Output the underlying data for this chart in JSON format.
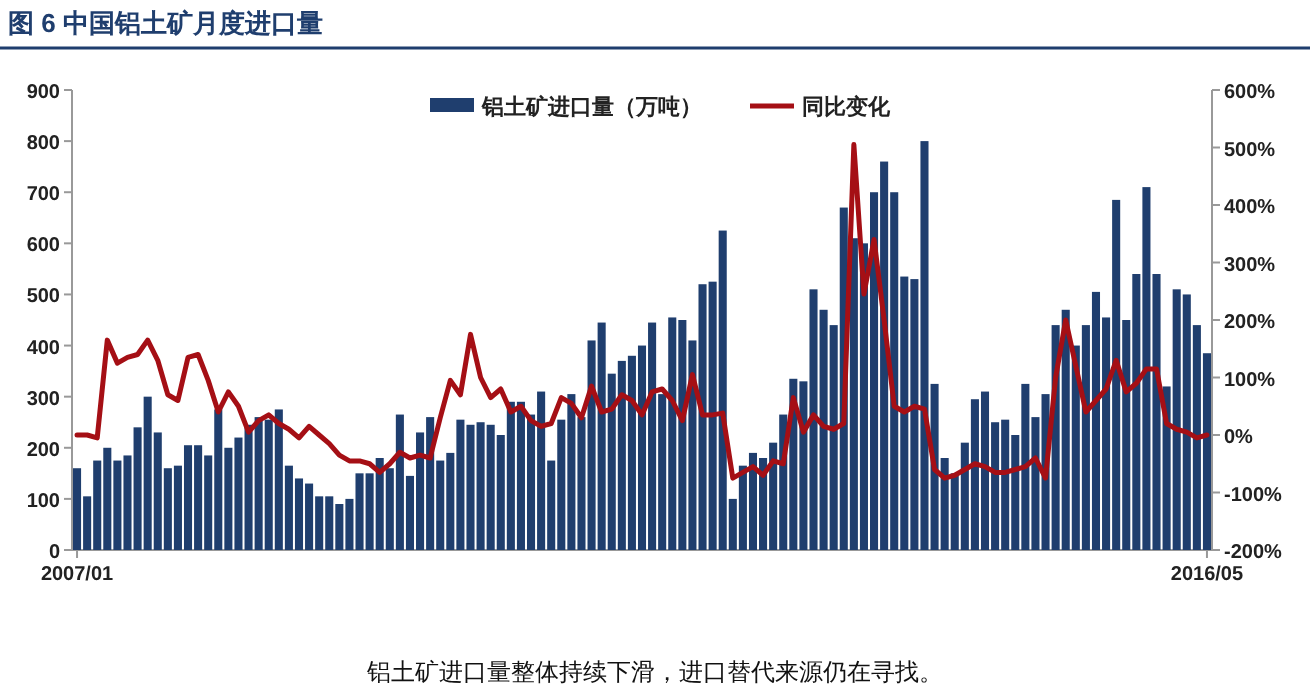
{
  "chart_data": {
    "type": "bar",
    "title": "图 6    中国铝土矿月度进口量",
    "categories": [
      "2007/01",
      null,
      null,
      null,
      null,
      null,
      null,
      null,
      null,
      null,
      null,
      null,
      null,
      null,
      null,
      null,
      null,
      null,
      null,
      null,
      null,
      null,
      null,
      null,
      null,
      null,
      null,
      null,
      null,
      null,
      null,
      null,
      null,
      null,
      null,
      null,
      null,
      null,
      null,
      null,
      null,
      null,
      null,
      null,
      null,
      null,
      null,
      null,
      null,
      null,
      null,
      null,
      null,
      null,
      null,
      null,
      null,
      null,
      null,
      null,
      null,
      null,
      null,
      null,
      null,
      null,
      null,
      null,
      null,
      null,
      null,
      null,
      null,
      null,
      null,
      null,
      null,
      null,
      null,
      null,
      null,
      null,
      null,
      null,
      null,
      null,
      null,
      null,
      null,
      null,
      null,
      null,
      null,
      null,
      null,
      null,
      null,
      null,
      null,
      null,
      null,
      null,
      null,
      null,
      null,
      null,
      null,
      null,
      null,
      null,
      null,
      null,
      "2016/05"
    ],
    "series": [
      {
        "name": "铝土矿进口量（万吨）",
        "color": "#1f3e6e",
        "values": [
          160,
          105,
          175,
          200,
          175,
          185,
          240,
          300,
          230,
          160,
          165,
          205,
          205,
          185,
          275,
          200,
          220,
          245,
          260,
          255,
          275,
          165,
          140,
          130,
          105,
          105,
          90,
          100,
          150,
          150,
          180,
          160,
          265,
          145,
          230,
          260,
          175,
          190,
          255,
          245,
          250,
          245,
          225,
          290,
          290,
          265,
          310,
          175,
          255,
          305,
          260,
          410,
          445,
          345,
          370,
          380,
          400,
          445,
          305,
          455,
          450,
          410,
          520,
          525,
          625,
          100,
          165,
          190,
          180,
          210,
          265,
          335,
          330,
          510,
          470,
          440,
          670,
          610,
          600,
          700,
          760,
          700,
          535,
          530,
          800,
          325,
          180,
          150,
          210,
          295,
          310,
          250,
          255,
          225,
          325,
          260,
          305,
          440,
          470,
          400,
          440,
          505,
          455,
          685,
          450,
          540,
          710,
          540,
          320,
          510,
          500,
          440,
          385
        ]
      },
      {
        "name": "同比变化",
        "type": "line",
        "axis": "y2",
        "color": "#a50f15",
        "values": [
          0,
          0,
          -5,
          165,
          125,
          135,
          140,
          165,
          130,
          70,
          60,
          135,
          140,
          95,
          40,
          75,
          50,
          5,
          25,
          35,
          20,
          10,
          -5,
          15,
          0,
          -15,
          -35,
          -45,
          -45,
          -50,
          -65,
          -50,
          -30,
          -40,
          -35,
          -40,
          30,
          95,
          70,
          175,
          100,
          65,
          80,
          40,
          50,
          25,
          15,
          20,
          65,
          55,
          30,
          85,
          40,
          45,
          70,
          60,
          35,
          75,
          80,
          60,
          25,
          105,
          35,
          35,
          38,
          -75,
          -65,
          -55,
          -70,
          -45,
          -50,
          65,
          5,
          35,
          15,
          10,
          20,
          505,
          245,
          340,
          200,
          50,
          40,
          50,
          45,
          -60,
          -75,
          -70,
          -60,
          -50,
          -55,
          -65,
          -65,
          -60,
          -55,
          -40,
          -75,
          100,
          200,
          120,
          40,
          60,
          80,
          130,
          75,
          90,
          115,
          115,
          20,
          10,
          5,
          -5,
          0
        ]
      }
    ],
    "ylim": [
      0,
      900
    ],
    "yticks": [
      0,
      100,
      200,
      300,
      400,
      500,
      600,
      700,
      800,
      900
    ],
    "y2lim": [
      -200,
      600
    ],
    "y2ticks": [
      {
        "value": -200,
        "label": "-200%"
      },
      {
        "value": -100,
        "label": "-100%"
      },
      {
        "value": 0,
        "label": "0%"
      },
      {
        "value": 100,
        "label": "100%"
      },
      {
        "value": 200,
        "label": "200%"
      },
      {
        "value": 300,
        "label": "300%"
      },
      {
        "value": 400,
        "label": "400%"
      },
      {
        "value": 500,
        "label": "500%"
      },
      {
        "value": 600,
        "label": "600%"
      }
    ],
    "legend": "top",
    "grid": false,
    "annotations": [
      "铝土矿进口量整体持续下滑，进口替代来源仍在寻找。"
    ]
  }
}
